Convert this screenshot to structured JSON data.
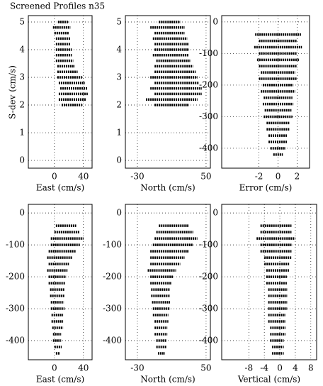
{
  "chart_data": [
    {
      "type": "scatter",
      "title": "Screened Profiles n35",
      "ylabel": "S-dev (cm/s)",
      "xlabel": "East (cm/s)",
      "xlim": [
        -36,
        52
      ],
      "xticks": [
        0,
        40
      ],
      "ylim": [
        -0.28,
        5.23
      ],
      "yticks": [
        0,
        1,
        2,
        3,
        4,
        5
      ],
      "grid": true,
      "color": "#000000",
      "y": [
        5.0,
        4.8,
        4.6,
        4.4,
        4.2,
        4.0,
        3.8,
        3.6,
        3.4,
        3.2,
        3.0,
        2.8,
        2.6,
        2.4,
        2.2,
        2.0
      ],
      "x_low": [
        5,
        -2,
        0,
        2,
        2,
        2,
        2,
        2,
        4,
        4,
        4,
        6,
        8,
        6,
        6,
        10
      ],
      "x_high": [
        20,
        22,
        20,
        22,
        22,
        24,
        24,
        26,
        28,
        32,
        38,
        42,
        46,
        46,
        44,
        38
      ]
    },
    {
      "type": "scatter",
      "xlabel": "North (cm/s)",
      "xlim": [
        -44,
        55
      ],
      "xticks": [
        -30,
        50
      ],
      "ylim": [
        -0.28,
        5.23
      ],
      "yticks": [
        0,
        1,
        2,
        3,
        4,
        5
      ],
      "grid": true,
      "color": "#000000",
      "y": [
        5.0,
        4.8,
        4.6,
        4.4,
        4.2,
        4.0,
        3.8,
        3.6,
        3.4,
        3.2,
        3.0,
        2.8,
        2.6,
        2.4,
        2.2,
        2.0
      ],
      "x_low": [
        -5,
        -15,
        -10,
        -12,
        -10,
        -10,
        -12,
        -8,
        -10,
        -10,
        -15,
        -10,
        -15,
        -10,
        -20,
        -10
      ],
      "x_high": [
        20,
        25,
        25,
        28,
        30,
        30,
        30,
        32,
        35,
        38,
        40,
        42,
        45,
        45,
        40,
        30
      ]
    },
    {
      "type": "scatter",
      "xlabel": "Error (cm/s)",
      "xlim": [
        -5.9,
        3.3
      ],
      "xticks": [
        -2,
        0,
        2
      ],
      "ylim": [
        -463,
        20
      ],
      "yticks": [
        0,
        -100,
        -200,
        -300,
        -400
      ],
      "grid": true,
      "color": "#000000",
      "y": [
        -40,
        -60,
        -80,
        -100,
        -120,
        -140,
        -160,
        -180,
        -200,
        -220,
        -240,
        -260,
        -280,
        -300,
        -320,
        -340,
        -360,
        -380,
        -400,
        -420
      ],
      "x_low": [
        -2.4,
        -2,
        -2.5,
        -2,
        -2.2,
        -2,
        -1.8,
        -2,
        -1.6,
        -1.8,
        -1.5,
        -1.6,
        -1.4,
        -1.5,
        -1.2,
        -1.2,
        -1,
        -1,
        -0.8,
        -0.5
      ],
      "x_high": [
        2.4,
        2,
        2.5,
        2,
        2.2,
        2,
        1.8,
        2,
        1.6,
        1.8,
        1.5,
        1.6,
        1.4,
        1.5,
        1.2,
        1.2,
        1,
        1,
        0.8,
        0.5
      ]
    },
    {
      "type": "scatter",
      "xlabel": "East (cm/s)",
      "xlim": [
        -36,
        52
      ],
      "xticks": [
        0,
        40
      ],
      "ylim": [
        -460,
        27
      ],
      "yticks": [
        0,
        -100,
        -200,
        -300,
        -400
      ],
      "grid": true,
      "color": "#000000",
      "y": [
        -40,
        -60,
        -80,
        -100,
        -120,
        -140,
        -160,
        -180,
        -200,
        -220,
        -240,
        -260,
        -280,
        -300,
        -320,
        -340,
        -360,
        -380,
        -400,
        -420,
        -440
      ],
      "x_low": [
        2,
        0,
        -5,
        -5,
        -8,
        -10,
        -8,
        -10,
        -8,
        -8,
        -6,
        -6,
        -5,
        -5,
        -4,
        -4,
        -3,
        -2,
        -2,
        0,
        2
      ],
      "x_high": [
        30,
        35,
        40,
        35,
        30,
        25,
        20,
        18,
        16,
        15,
        14,
        14,
        13,
        14,
        12,
        12,
        12,
        10,
        10,
        10,
        8
      ]
    },
    {
      "type": "scatter",
      "xlabel": "North (cm/s)",
      "xlim": [
        -44,
        55
      ],
      "xticks": [
        -30,
        50
      ],
      "ylim": [
        -460,
        27
      ],
      "yticks": [
        0,
        -100,
        -200,
        -300,
        -400
      ],
      "grid": true,
      "color": "#000000",
      "y": [
        -40,
        -60,
        -80,
        -100,
        -120,
        -140,
        -160,
        -180,
        -200,
        -220,
        -240,
        -260,
        -280,
        -300,
        -320,
        -340,
        -360,
        -380,
        -400,
        -420,
        -440
      ],
      "x_low": [
        -5,
        -8,
        -10,
        -12,
        -15,
        -15,
        -15,
        -18,
        -15,
        -15,
        -14,
        -14,
        -13,
        -12,
        -12,
        -10,
        -10,
        -10,
        -8,
        -8,
        -6
      ],
      "x_high": [
        30,
        35,
        40,
        35,
        30,
        25,
        20,
        15,
        12,
        10,
        8,
        8,
        8,
        8,
        6,
        6,
        5,
        5,
        4,
        4,
        2
      ]
    },
    {
      "type": "scatter",
      "xlabel": "Vertical (cm/s)",
      "xlim": [
        -15,
        9.5
      ],
      "xticks": [
        -8,
        -4,
        0,
        4,
        8
      ],
      "ylim": [
        -460,
        27
      ],
      "yticks": [
        0,
        -100,
        -200,
        -300,
        -400
      ],
      "grid": true,
      "color": "#000000",
      "y": [
        -40,
        -60,
        -80,
        -100,
        -120,
        -140,
        -160,
        -180,
        -200,
        -220,
        -240,
        -260,
        -280,
        -300,
        -320,
        -340,
        -360,
        -380,
        -400,
        -420,
        -440
      ],
      "x_low": [
        -5,
        -5,
        -6,
        -5,
        -5,
        -4,
        -4,
        -3.5,
        -3.5,
        -3.5,
        -3,
        -3,
        -3,
        -3,
        -3,
        -3,
        -2.5,
        -2.5,
        -2.5,
        -2,
        -2
      ],
      "x_high": [
        3,
        3,
        4,
        3,
        3,
        3,
        2.5,
        2.5,
        2,
        2,
        2,
        2,
        2,
        2,
        1.5,
        1.5,
        1.5,
        1.5,
        1,
        1,
        1
      ]
    }
  ]
}
